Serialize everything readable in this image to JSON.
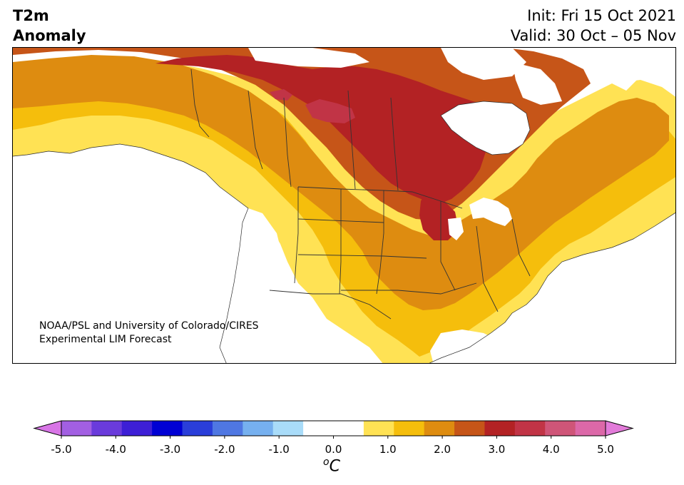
{
  "title": {
    "line1": "T2m",
    "line2": "Anomaly"
  },
  "info": {
    "init": "Init: Fri 15 Oct 2021",
    "valid": "Valid: 30 Oct – 05 Nov"
  },
  "credit": {
    "line1": "NOAA/PSL and University of Colorado/CIRES",
    "line2": "Experimental LIM Forecast"
  },
  "colorbar": {
    "unit_superscript": "o",
    "unit_main": "C",
    "min": -5.0,
    "max": 5.0,
    "step": 0.5,
    "extend": "both",
    "tick_labels": [
      "-5.0",
      "-4.0",
      "-3.0",
      "-2.0",
      "-1.0",
      "0.0",
      "1.0",
      "2.0",
      "3.0",
      "4.0",
      "5.0"
    ],
    "under_color": "#d875e6",
    "over_color": "#e27bd9",
    "colors": [
      "#d875e6",
      "#a25fe2",
      "#6a3bdb",
      "#3d1fd6",
      "#0000d4",
      "#2a3ed9",
      "#4f77e2",
      "#76b0ef",
      "#a9dcf9",
      "#ffffff",
      "#ffffff",
      "#ffe254",
      "#f5be0c",
      "#de8c10",
      "#c65518",
      "#b32224",
      "#c13446",
      "#cf5578",
      "#dc68a8",
      "#e27bd9"
    ]
  },
  "map": {
    "region": "North America",
    "ocean_color": "#ffffff",
    "border_color": "#333333",
    "anomaly_fields": [
      {
        "level": "1.0",
        "color": "#f5be0c"
      },
      {
        "level": "0.5",
        "color": "#ffe254"
      },
      {
        "level": "1.5",
        "color": "#de8c10"
      },
      {
        "level": "2.0",
        "color": "#c65518"
      },
      {
        "level": "2.5",
        "color": "#b32224"
      },
      {
        "level": "3.0",
        "color": "#c13446"
      }
    ]
  }
}
